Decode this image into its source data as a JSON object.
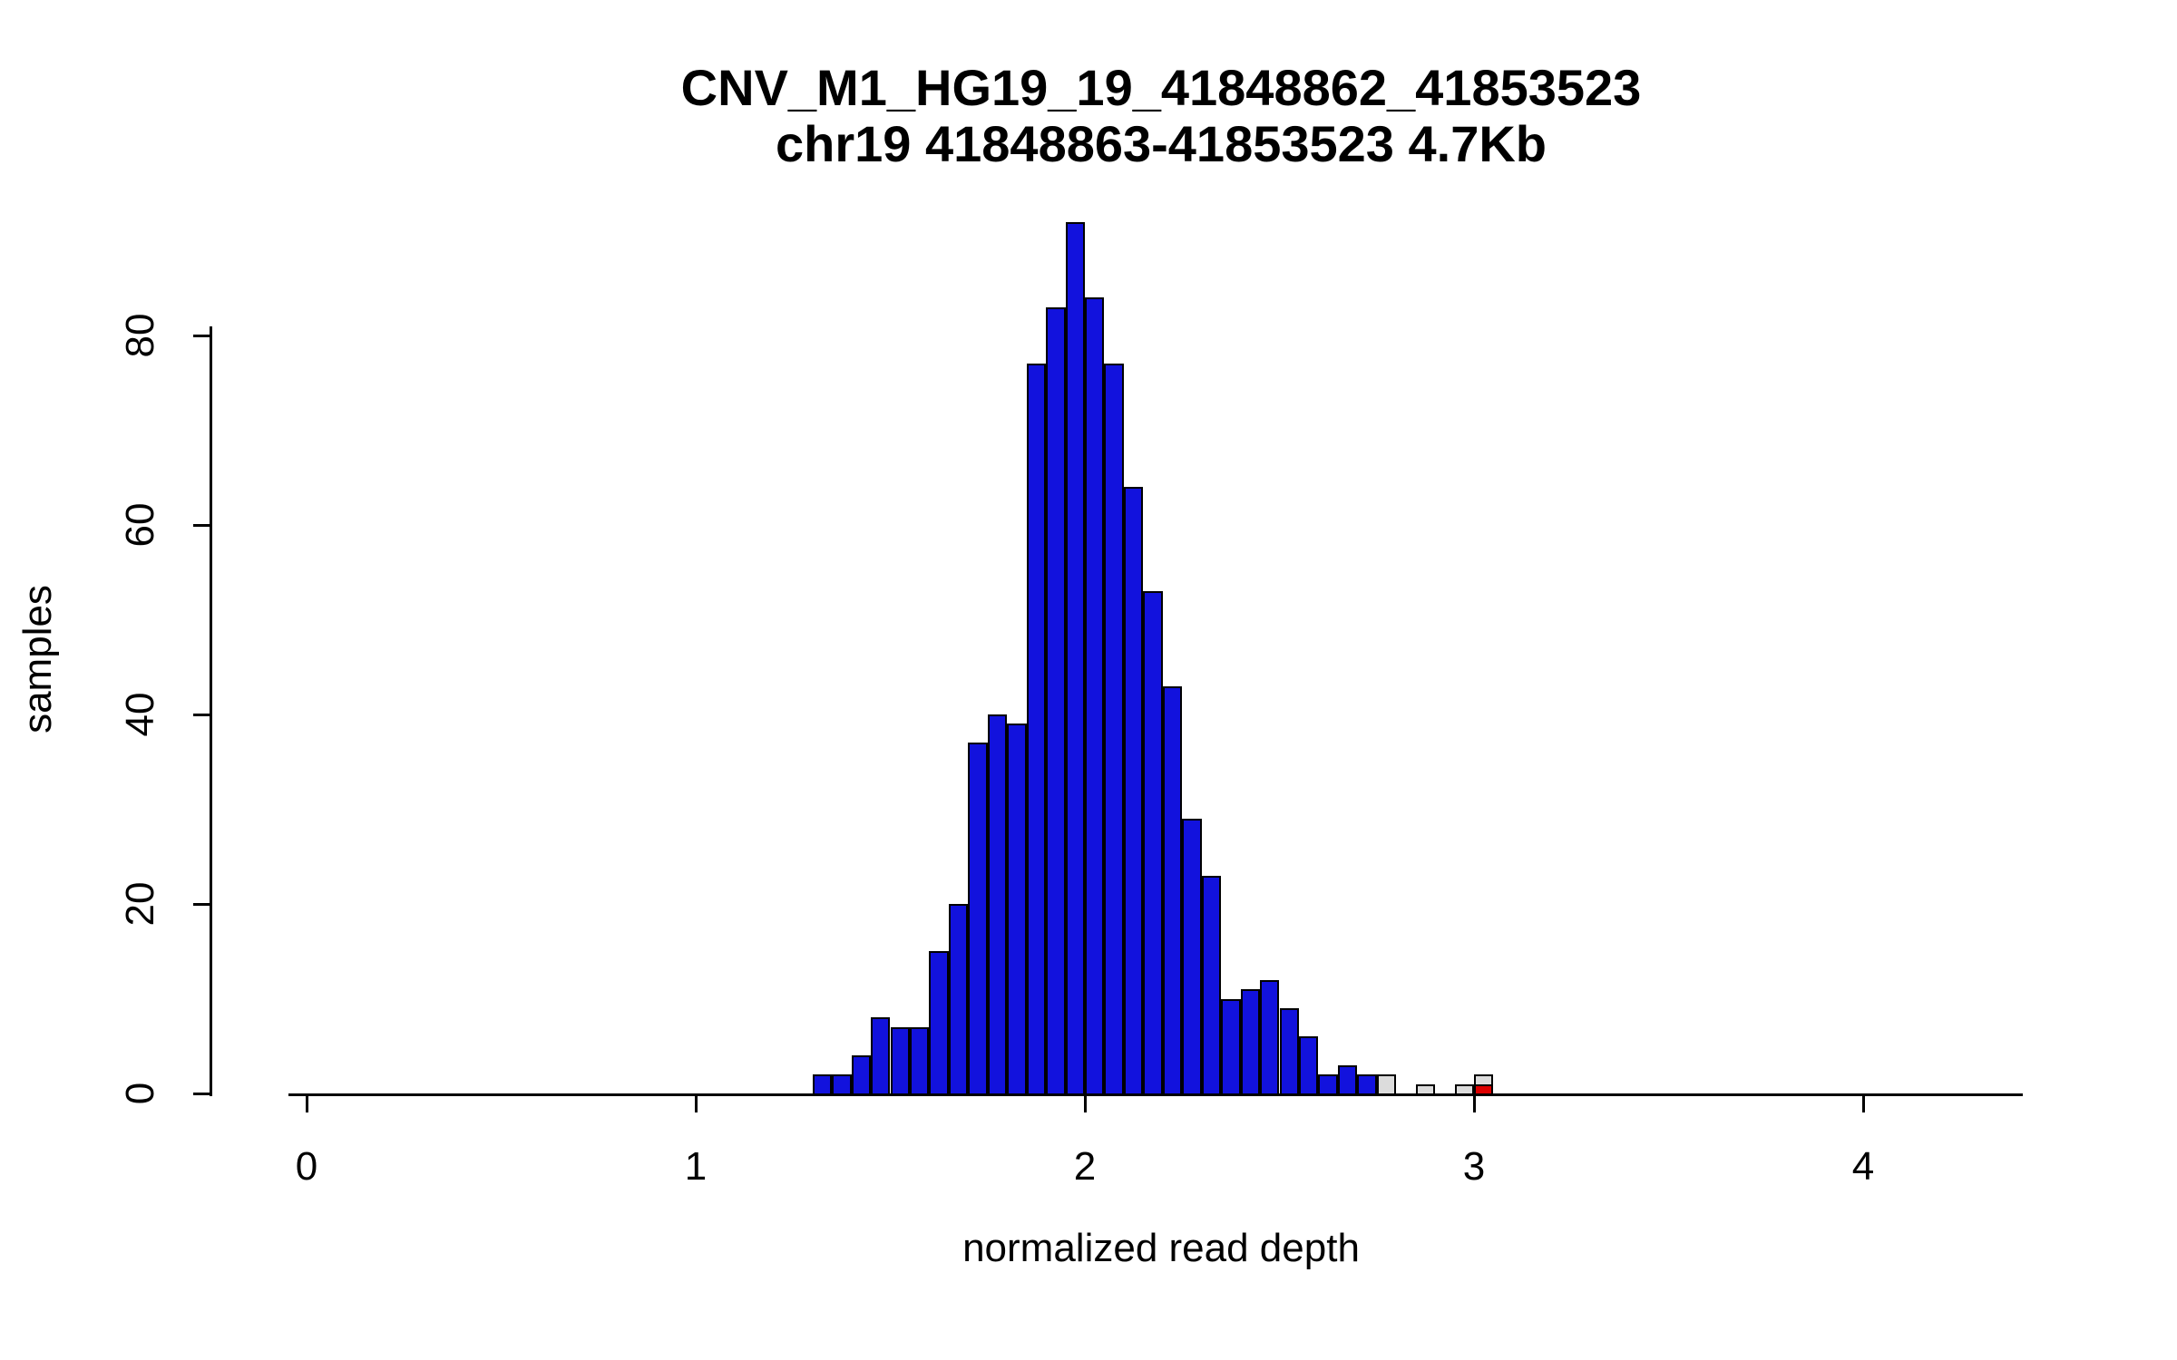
{
  "chart_data": {
    "type": "bar",
    "chart_kind": "histogram",
    "title": "CNV_M1_HG19_19_41848862_41853523",
    "subtitle": "chr19 41848863-41853523 4.7Kb",
    "xlabel": "normalized read depth",
    "ylabel": "samples",
    "xlim": [
      -0.2,
      4.4
    ],
    "ylim": [
      0,
      92
    ],
    "x_ticks": [
      0,
      1,
      2,
      3,
      4
    ],
    "y_ticks": [
      0,
      20,
      40,
      60,
      80
    ],
    "bin_width": 0.05,
    "grid": false,
    "legend": "none",
    "colors": {
      "blue": "#1212DD",
      "gray": "#DCDCDC",
      "red": "#DD0000",
      "border": "#000000",
      "background": "#FFFFFF",
      "text": "#000000"
    },
    "bars": [
      {
        "x": 1.3,
        "segments": [
          {
            "color": "blue",
            "count": 2
          }
        ]
      },
      {
        "x": 1.35,
        "segments": [
          {
            "color": "blue",
            "count": 2
          }
        ]
      },
      {
        "x": 1.4,
        "segments": [
          {
            "color": "blue",
            "count": 4
          }
        ]
      },
      {
        "x": 1.45,
        "segments": [
          {
            "color": "blue",
            "count": 8
          }
        ]
      },
      {
        "x": 1.5,
        "segments": [
          {
            "color": "blue",
            "count": 7
          }
        ]
      },
      {
        "x": 1.55,
        "segments": [
          {
            "color": "blue",
            "count": 7
          }
        ]
      },
      {
        "x": 1.6,
        "segments": [
          {
            "color": "blue",
            "count": 15
          }
        ]
      },
      {
        "x": 1.65,
        "segments": [
          {
            "color": "blue",
            "count": 20
          }
        ]
      },
      {
        "x": 1.7,
        "segments": [
          {
            "color": "blue",
            "count": 37
          }
        ]
      },
      {
        "x": 1.75,
        "segments": [
          {
            "color": "blue",
            "count": 40
          }
        ]
      },
      {
        "x": 1.8,
        "segments": [
          {
            "color": "blue",
            "count": 39
          }
        ]
      },
      {
        "x": 1.85,
        "segments": [
          {
            "color": "blue",
            "count": 77
          }
        ]
      },
      {
        "x": 1.9,
        "segments": [
          {
            "color": "blue",
            "count": 83
          }
        ]
      },
      {
        "x": 1.95,
        "segments": [
          {
            "color": "blue",
            "count": 92
          }
        ]
      },
      {
        "x": 2.0,
        "segments": [
          {
            "color": "blue",
            "count": 84
          }
        ]
      },
      {
        "x": 2.05,
        "segments": [
          {
            "color": "blue",
            "count": 77
          }
        ]
      },
      {
        "x": 2.1,
        "segments": [
          {
            "color": "blue",
            "count": 64
          }
        ]
      },
      {
        "x": 2.15,
        "segments": [
          {
            "color": "blue",
            "count": 53
          }
        ]
      },
      {
        "x": 2.2,
        "segments": [
          {
            "color": "blue",
            "count": 43
          }
        ]
      },
      {
        "x": 2.25,
        "segments": [
          {
            "color": "blue",
            "count": 29
          }
        ]
      },
      {
        "x": 2.3,
        "segments": [
          {
            "color": "blue",
            "count": 23
          }
        ]
      },
      {
        "x": 2.35,
        "segments": [
          {
            "color": "blue",
            "count": 10
          }
        ]
      },
      {
        "x": 2.4,
        "segments": [
          {
            "color": "blue",
            "count": 11
          }
        ]
      },
      {
        "x": 2.45,
        "segments": [
          {
            "color": "blue",
            "count": 12
          }
        ]
      },
      {
        "x": 2.5,
        "segments": [
          {
            "color": "blue",
            "count": 9
          }
        ]
      },
      {
        "x": 2.55,
        "segments": [
          {
            "color": "blue",
            "count": 6
          }
        ]
      },
      {
        "x": 2.6,
        "segments": [
          {
            "color": "blue",
            "count": 2
          }
        ]
      },
      {
        "x": 2.65,
        "segments": [
          {
            "color": "blue",
            "count": 3
          }
        ]
      },
      {
        "x": 2.7,
        "segments": [
          {
            "color": "blue",
            "count": 2
          }
        ]
      },
      {
        "x": 2.75,
        "segments": [
          {
            "color": "gray",
            "count": 2
          }
        ]
      },
      {
        "x": 2.85,
        "segments": [
          {
            "color": "gray",
            "count": 1
          }
        ]
      },
      {
        "x": 2.95,
        "segments": [
          {
            "color": "gray",
            "count": 1
          }
        ]
      },
      {
        "x": 3.0,
        "segments": [
          {
            "color": "red",
            "count": 1
          },
          {
            "color": "gray",
            "count": 1
          }
        ]
      }
    ]
  }
}
